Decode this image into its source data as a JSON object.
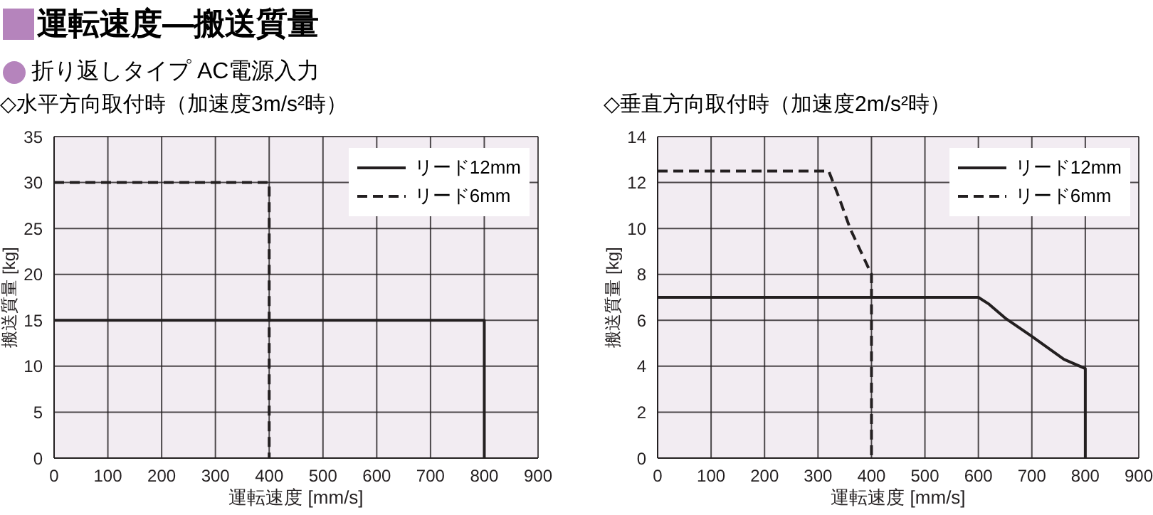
{
  "chart_data": [
    {
      "type": "other",
      "title": "運転速度—搬送質量",
      "subtitle": "折り返しタイプ AC電源入力"
    },
    {
      "type": "line",
      "title": "◇水平方向取付時（加速度3m/s²時）",
      "xlabel": "運転速度 [mm/s]",
      "ylabel": "搬送質量 [kg]",
      "xlim": [
        0,
        900
      ],
      "xticks": [
        0,
        100,
        200,
        300,
        400,
        500,
        600,
        700,
        800,
        900
      ],
      "ylim": [
        0,
        35
      ],
      "yticks": [
        0,
        5,
        10,
        15,
        20,
        25,
        30,
        35
      ],
      "grid": true,
      "legend": "top right",
      "marker": "none",
      "series": [
        {
          "name": "リード12mm",
          "color": "#231f20",
          "line_style": "solid",
          "x": [
            0,
            800,
            800
          ],
          "values": [
            15,
            15,
            0
          ]
        },
        {
          "name": "リード6mm",
          "color": "#231f20",
          "line_style": "dashed",
          "x": [
            0,
            400,
            400
          ],
          "values": [
            30,
            30,
            0
          ]
        }
      ]
    },
    {
      "type": "line",
      "title": "◇垂直方向取付時（加速度2m/s²時）",
      "xlabel": "運転速度 [mm/s]",
      "ylabel": "搬送質量 [kg]",
      "xlim": [
        0,
        900
      ],
      "xticks": [
        0,
        100,
        200,
        300,
        400,
        500,
        600,
        700,
        800,
        900
      ],
      "ylim": [
        0,
        14
      ],
      "yticks": [
        0,
        2,
        4,
        6,
        8,
        10,
        12,
        14
      ],
      "grid": true,
      "legend": "top right",
      "marker": "none",
      "series": [
        {
          "name": "リード12mm",
          "color": "#231f20",
          "line_style": "solid",
          "x": [
            0,
            600,
            620,
            650,
            700,
            760,
            800,
            800
          ],
          "values": [
            7,
            7,
            6.7,
            6.1,
            5.3,
            4.3,
            3.9,
            0
          ]
        },
        {
          "name": "リード6mm",
          "color": "#231f20",
          "line_style": "dashed",
          "x": [
            0,
            320,
            340,
            360,
            380,
            400,
            400
          ],
          "values": [
            12.5,
            12.5,
            11.3,
            10,
            9,
            8,
            0
          ]
        }
      ]
    }
  ]
}
